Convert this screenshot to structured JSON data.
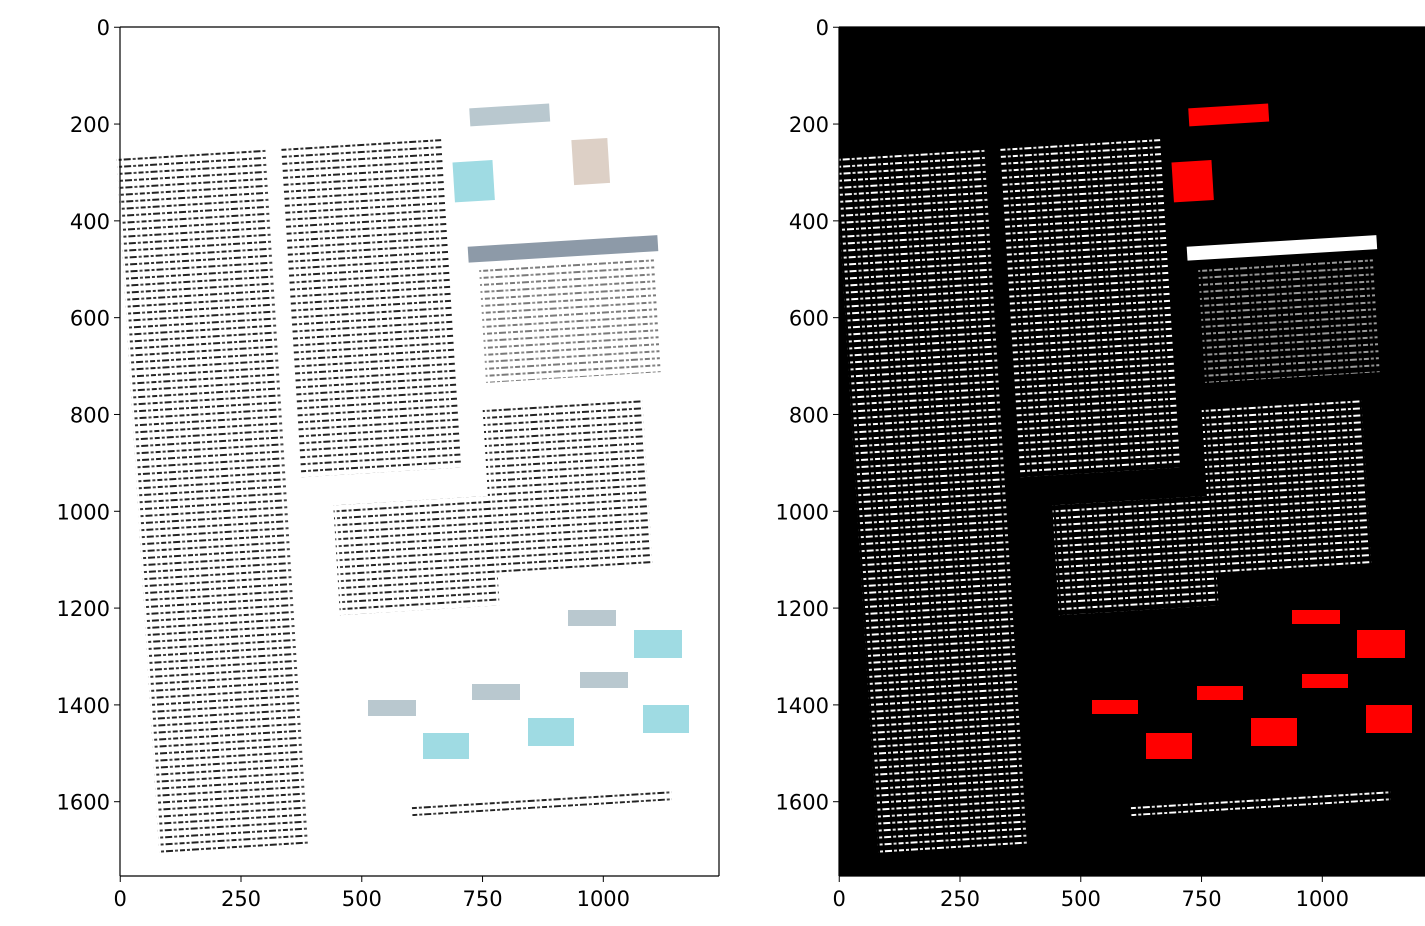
{
  "chart_data": [
    {
      "type": "image",
      "xlim": [
        -0.5,
        1239.5
      ],
      "ylim": [
        1753.5,
        -0.5
      ],
      "xticks": [
        0,
        250,
        500,
        750,
        1000
      ],
      "yticks": [
        0,
        200,
        400,
        600,
        800,
        1000,
        1200,
        1400,
        1600
      ]
    },
    {
      "type": "image",
      "xlim": [
        -0.5,
        1239.5
      ],
      "ylim": [
        1753.5,
        -0.5
      ],
      "xticks": [
        0,
        250,
        500,
        750,
        1000
      ],
      "yticks": [
        0,
        200,
        400,
        600,
        800,
        1000,
        1200,
        1400,
        1600
      ]
    }
  ]
}
